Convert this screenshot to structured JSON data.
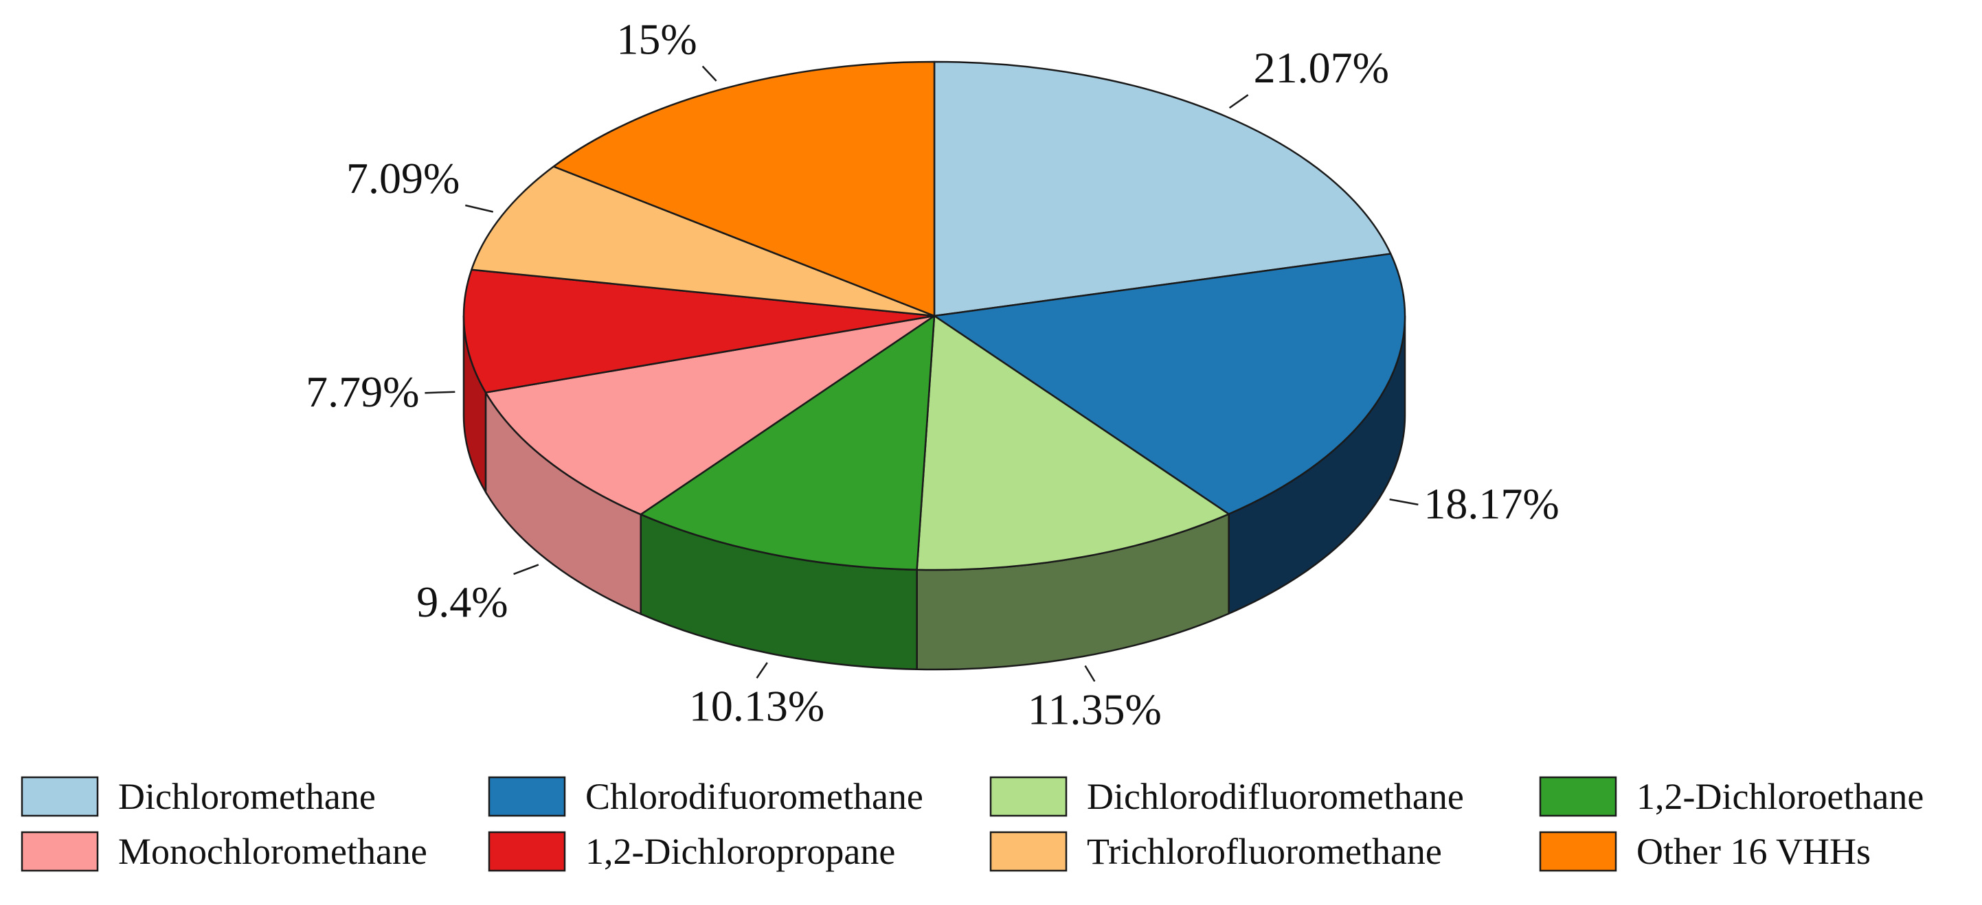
{
  "chart_data": {
    "type": "pie",
    "style": "3d",
    "title": "",
    "legend_position": "bottom",
    "slices": [
      {
        "label": "Dichloromethane",
        "value": 21.07,
        "label_text": "21.07%",
        "color": "#a6cee3",
        "side_color": "#7aa3bd"
      },
      {
        "label": "Chlorodifuoromethane",
        "value": 18.17,
        "label_text": "18.17%",
        "color": "#1f78b4",
        "side_color": "#0d2f4c"
      },
      {
        "label": "Dichlorodifluoromethane",
        "value": 11.35,
        "label_text": "11.35%",
        "color": "#b2df8a",
        "side_color": "#5b7646"
      },
      {
        "label": "1,2-Dichloroethane",
        "value": 10.13,
        "label_text": "10.13%",
        "color": "#33a02c",
        "side_color": "#1f6a1e"
      },
      {
        "label": "Monochloromethane",
        "value": 9.4,
        "label_text": "9.4%",
        "color": "#fb9a99",
        "side_color": "#c97a7a"
      },
      {
        "label": "1,2-Dichloropropane",
        "value": 7.79,
        "label_text": "7.79%",
        "color": "#e31a1c",
        "side_color": "#b01417"
      },
      {
        "label": "Trichlorofluoromethane",
        "value": 7.09,
        "label_text": "7.09%",
        "color": "#fdbf6f",
        "side_color": "#c9965a"
      },
      {
        "label": "Other 16 VHHs",
        "value": 15,
        "label_text": "15%",
        "color": "#ff7f00",
        "side_color": "#c76300"
      }
    ]
  }
}
